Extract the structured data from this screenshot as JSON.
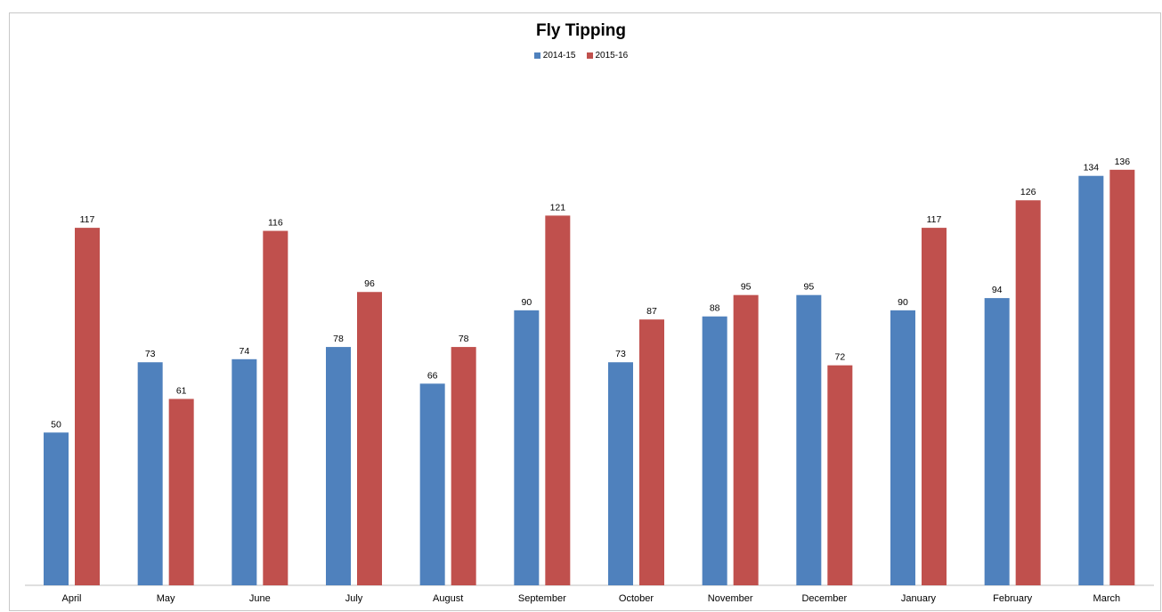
{
  "chart_data": {
    "type": "bar",
    "title": "Fly Tipping",
    "categories": [
      "April",
      "May",
      "June",
      "July",
      "August",
      "September",
      "October",
      "November",
      "December",
      "January",
      "February",
      "March"
    ],
    "series": [
      {
        "name": "2014-15",
        "color": "#4f81bd",
        "values": [
          50,
          73,
          74,
          78,
          66,
          90,
          73,
          88,
          95,
          90,
          94,
          134
        ]
      },
      {
        "name": "2015-16",
        "color": "#c0504d",
        "values": [
          117,
          61,
          116,
          96,
          78,
          121,
          87,
          95,
          72,
          117,
          126,
          136
        ]
      }
    ],
    "ylim": [
      0,
      140
    ],
    "grid": false,
    "legend_position": "top"
  }
}
